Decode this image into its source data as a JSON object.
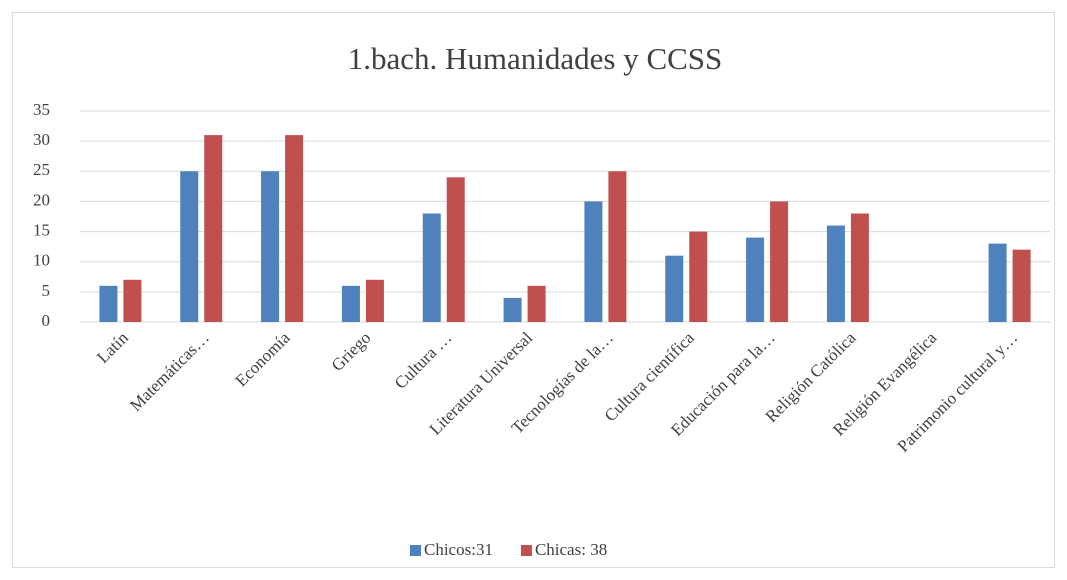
{
  "chart_data": {
    "type": "bar",
    "title": "1.bach. Humanidades y CCSS",
    "categories": [
      "Latín",
      "Matemáticas…",
      "Economía",
      "Griego",
      "Cultura …",
      "Literatura Universal",
      "Tecnologías de la…",
      "Cultura científica",
      "Educación para la…",
      "Religión  Católica",
      "Religión Evangélica",
      "Patrimonio cultural y…"
    ],
    "series": [
      {
        "name": "Chicos:31",
        "color": "#4f81bd",
        "values": [
          6,
          25,
          25,
          6,
          18,
          4,
          20,
          11,
          14,
          16,
          0,
          13
        ]
      },
      {
        "name": "Chicas: 38",
        "color": "#c0504d",
        "values": [
          7,
          31,
          31,
          7,
          24,
          6,
          25,
          15,
          20,
          18,
          0,
          12
        ]
      }
    ],
    "ylim": [
      0,
      35
    ],
    "yticks": [
      0,
      5,
      10,
      15,
      20,
      25,
      30,
      35
    ],
    "grid": true,
    "legend": "bottom"
  }
}
